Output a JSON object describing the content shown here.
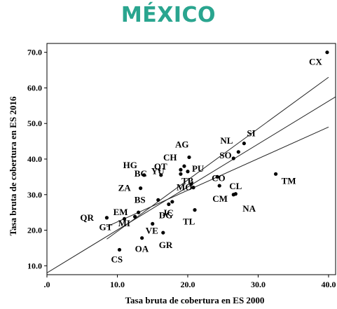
{
  "chart_data": {
    "type": "scatter",
    "title": "MÉXICO",
    "xlabel": "Tasa bruta de cobertura en ES 2000",
    "ylabel": "Tasa bruta de cobertura en ES 2016",
    "xlim": [
      0,
      41
    ],
    "ylim": [
      7.5,
      72.5
    ],
    "x_ticks": [
      0,
      10,
      20,
      30,
      40
    ],
    "x_tick_labels": [
      ".0",
      "10.0",
      "20.0",
      "30.0",
      "40.0"
    ],
    "y_ticks": [
      10,
      20,
      30,
      40,
      50,
      60,
      70
    ],
    "y_tick_labels": [
      "10.0",
      "20.0",
      "30.0",
      "40.0",
      "50.0",
      "60.0",
      "70.0"
    ],
    "grid": false,
    "points": [
      {
        "label": "CX",
        "x": 39.8,
        "y": 70.0
      },
      {
        "label": "SI",
        "x": 28.0,
        "y": 44.4
      },
      {
        "label": "NL",
        "x": 27.2,
        "y": 42.0
      },
      {
        "label": "SO",
        "x": 26.5,
        "y": 40.2
      },
      {
        "label": "AG",
        "x": 20.2,
        "y": 40.5
      },
      {
        "label": "CH",
        "x": 19.5,
        "y": 38.0
      },
      {
        "label": "QT",
        "x": 19.0,
        "y": 37.0
      },
      {
        "label": "PU",
        "x": 20.0,
        "y": 36.5
      },
      {
        "label": "YU",
        "x": 19.0,
        "y": 35.8
      },
      {
        "label": "HG",
        "x": 13.8,
        "y": 35.5
      },
      {
        "label": "CO",
        "x": 24.2,
        "y": 35.0
      },
      {
        "label": "TB",
        "x": 20.5,
        "y": 33.0
      },
      {
        "label": "BC",
        "x": 16.2,
        "y": 35.5
      },
      {
        "label": "ZA",
        "x": 13.3,
        "y": 31.8
      },
      {
        "label": "MO",
        "x": 20.8,
        "y": 32.0
      },
      {
        "label": "CL",
        "x": 24.5,
        "y": 32.5
      },
      {
        "label": "TM",
        "x": 32.5,
        "y": 35.8
      },
      {
        "label": "CM",
        "x": 26.5,
        "y": 30.0
      },
      {
        "label": "NA",
        "x": 26.8,
        "y": 30.2
      },
      {
        "label": "BS",
        "x": 15.8,
        "y": 28.5
      },
      {
        "label": "JC",
        "x": 17.8,
        "y": 28.0
      },
      {
        "label": "DG",
        "x": 17.3,
        "y": 27.3
      },
      {
        "label": "TL",
        "x": 21.0,
        "y": 25.7
      },
      {
        "label": "EM",
        "x": 13.0,
        "y": 25.0
      },
      {
        "label": "QR",
        "x": 8.5,
        "y": 23.5
      },
      {
        "label": "GT",
        "x": 11.0,
        "y": 23.2
      },
      {
        "label": "MI",
        "x": 12.5,
        "y": 23.8
      },
      {
        "label": "VE",
        "x": 15.0,
        "y": 21.8
      },
      {
        "label": "GR",
        "x": 16.5,
        "y": 19.3
      },
      {
        "label": "OA",
        "x": 13.5,
        "y": 17.8
      },
      {
        "label": "CS",
        "x": 10.3,
        "y": 14.5
      }
    ],
    "fit_line": {
      "x": [
        0,
        41
      ],
      "y": [
        8.0,
        57.5
      ]
    },
    "confidence_upper": {
      "x": [
        8.5,
        40.0
      ],
      "y": [
        17.5,
        63.0
      ]
    },
    "confidence_lower": {
      "x": [
        8.5,
        40.0
      ],
      "y": [
        21.0,
        49.0
      ]
    }
  }
}
